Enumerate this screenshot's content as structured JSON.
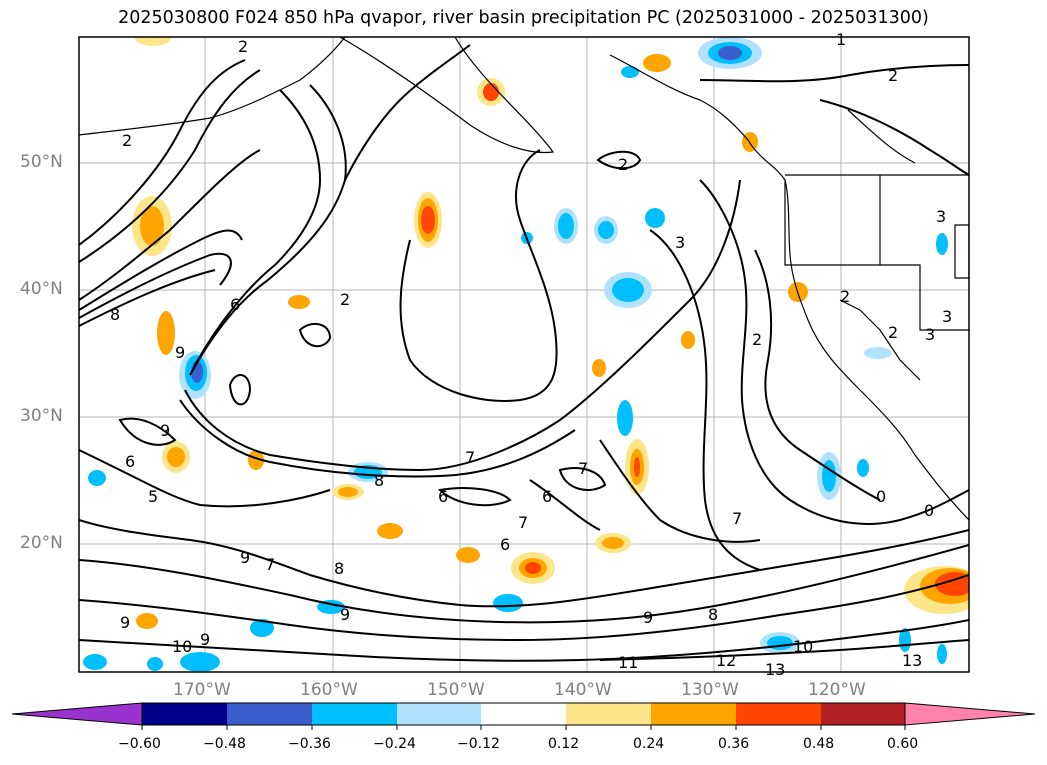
{
  "title": "2025030800 F024 850 hPa qvapor, river basin precipitation PC (2025031000 - 2025031300)",
  "lat_labels": [
    "50°N",
    "40°N",
    "30°N",
    "20°N"
  ],
  "lon_labels": [
    "170°W",
    "160°W",
    "150°W",
    "140°W",
    "130°W",
    "120°W"
  ],
  "colorbar": {
    "tick_labels": [
      "−0.60",
      "−0.48",
      "−0.36",
      "−0.24",
      "−0.12",
      "0.12",
      "0.24",
      "0.36",
      "0.48",
      "0.60"
    ],
    "colors": [
      "#9a32cd",
      "#00008b",
      "#3a5fcd",
      "#00bfff",
      "#b0e2ff",
      "#ffffff",
      "#fde68a",
      "#ffa500",
      "#ff4500",
      "#b22222",
      "#ff82ab"
    ]
  },
  "contour_labels": [
    "2",
    "2",
    "2",
    "2",
    "2",
    "3",
    "3",
    "3",
    "2",
    "2",
    "6",
    "7",
    "8",
    "9",
    "9",
    "6",
    "5",
    "7",
    "8",
    "9",
    "9",
    "9",
    "10",
    "11",
    "12",
    "13",
    "13",
    "10",
    "6",
    "7",
    "7",
    "8",
    "9",
    "7",
    "6",
    "6",
    "0",
    "0",
    "1",
    "2",
    "3",
    "9",
    "8"
  ]
}
